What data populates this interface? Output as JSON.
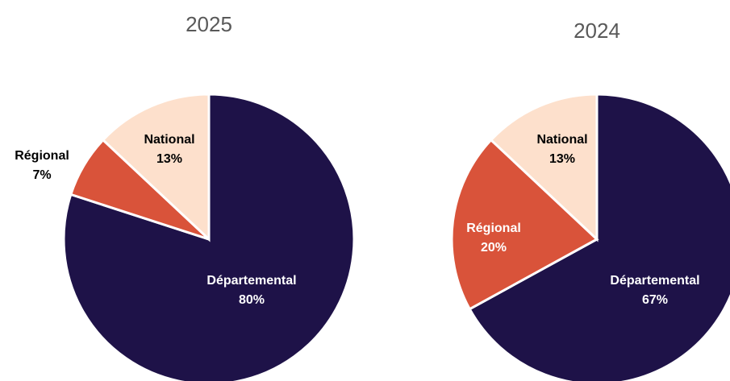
{
  "chart_data": [
    {
      "type": "pie",
      "title": "2025",
      "categories": [
        "Départemental",
        "Régional",
        "National"
      ],
      "values": [
        80,
        7,
        13
      ],
      "value_labels": [
        "80%",
        "7%",
        "13%"
      ],
      "colors": [
        "#1e1248",
        "#d9533a",
        "#fde0cc"
      ]
    },
    {
      "type": "pie",
      "title": "2024",
      "categories": [
        "Départemental",
        "Régional",
        "National"
      ],
      "values": [
        67,
        20,
        13
      ],
      "value_labels": [
        "67%",
        "20%",
        "13%"
      ],
      "colors": [
        "#1e1248",
        "#d9533a",
        "#fde0cc"
      ]
    }
  ]
}
